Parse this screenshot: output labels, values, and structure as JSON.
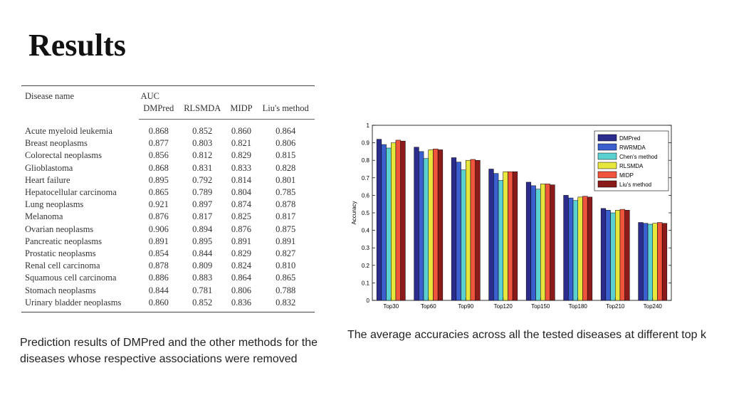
{
  "slide": {
    "title": "Results",
    "left_caption": "Prediction results of DMPred and the other methods for the diseases whose respective associations were removed",
    "right_caption": "The average accuracies across all the tested diseases at different top k"
  },
  "table": {
    "group_header": "AUC",
    "columns": [
      "Disease name",
      "DMPred",
      "RLSMDA",
      "MIDP",
      "Liu's method"
    ],
    "rows": [
      [
        "Acute myeloid leukemia",
        "0.868",
        "0.852",
        "0.860",
        "0.864"
      ],
      [
        "Breast neoplasms",
        "0.877",
        "0.803",
        "0.821",
        "0.806"
      ],
      [
        "Colorectal neoplasms",
        "0.856",
        "0.812",
        "0.829",
        "0.815"
      ],
      [
        "Glioblastoma",
        "0.868",
        "0.831",
        "0.833",
        "0.828"
      ],
      [
        "Heart failure",
        "0.895",
        "0.792",
        "0.814",
        "0.801"
      ],
      [
        "Hepatocellular carcinoma",
        "0.865",
        "0.789",
        "0.804",
        "0.785"
      ],
      [
        "Lung neoplasms",
        "0.921",
        "0.897",
        "0.874",
        "0.878"
      ],
      [
        "Melanoma",
        "0.876",
        "0.817",
        "0.825",
        "0.817"
      ],
      [
        "Ovarian neoplasms",
        "0.906",
        "0.894",
        "0.876",
        "0.875"
      ],
      [
        "Pancreatic neoplasms",
        "0.891",
        "0.895",
        "0.891",
        "0.891"
      ],
      [
        "Prostatic neoplasms",
        "0.854",
        "0.844",
        "0.829",
        "0.827"
      ],
      [
        "Renal cell carcinoma",
        "0.878",
        "0.809",
        "0.824",
        "0.810"
      ],
      [
        "Squamous cell carcinoma",
        "0.886",
        "0.883",
        "0.864",
        "0.865"
      ],
      [
        "Stomach neoplasms",
        "0.844",
        "0.781",
        "0.806",
        "0.788"
      ],
      [
        "Urinary bladder neoplasms",
        "0.860",
        "0.852",
        "0.836",
        "0.832"
      ]
    ]
  },
  "chart_data": {
    "type": "bar",
    "title": "",
    "xlabel": "",
    "ylabel": "Accuracy",
    "ylim": [
      0,
      1
    ],
    "yticks": [
      "0",
      "0.1",
      "0.2",
      "0.3",
      "0.4",
      "0.5",
      "0.6",
      "0.7",
      "0.8",
      "0.9",
      "1"
    ],
    "legend_position": "top-right",
    "grid": false,
    "categories": [
      "Top30",
      "Top60",
      "Top90",
      "Top120",
      "Top150",
      "Top180",
      "Top210",
      "Top240"
    ],
    "series": [
      {
        "name": "DMPred",
        "color": "#2b2c8c",
        "values": [
          0.92,
          0.875,
          0.815,
          0.75,
          0.675,
          0.6,
          0.525,
          0.445
        ]
      },
      {
        "name": "RWRMDA",
        "color": "#3b5fcf",
        "values": [
          0.89,
          0.85,
          0.79,
          0.725,
          0.655,
          0.585,
          0.515,
          0.44
        ]
      },
      {
        "name": "Chen's method",
        "color": "#5bd0d0",
        "values": [
          0.87,
          0.81,
          0.745,
          0.685,
          0.635,
          0.57,
          0.5,
          0.435
        ]
      },
      {
        "name": "RLSMDA",
        "color": "#e6e63c",
        "values": [
          0.9,
          0.86,
          0.8,
          0.735,
          0.665,
          0.59,
          0.515,
          0.44
        ]
      },
      {
        "name": "MIDP",
        "color": "#f0543c",
        "values": [
          0.915,
          0.865,
          0.805,
          0.735,
          0.665,
          0.595,
          0.52,
          0.445
        ]
      },
      {
        "name": "Liu's method",
        "color": "#8b1a1a",
        "values": [
          0.91,
          0.86,
          0.8,
          0.735,
          0.66,
          0.59,
          0.515,
          0.44
        ]
      }
    ]
  }
}
